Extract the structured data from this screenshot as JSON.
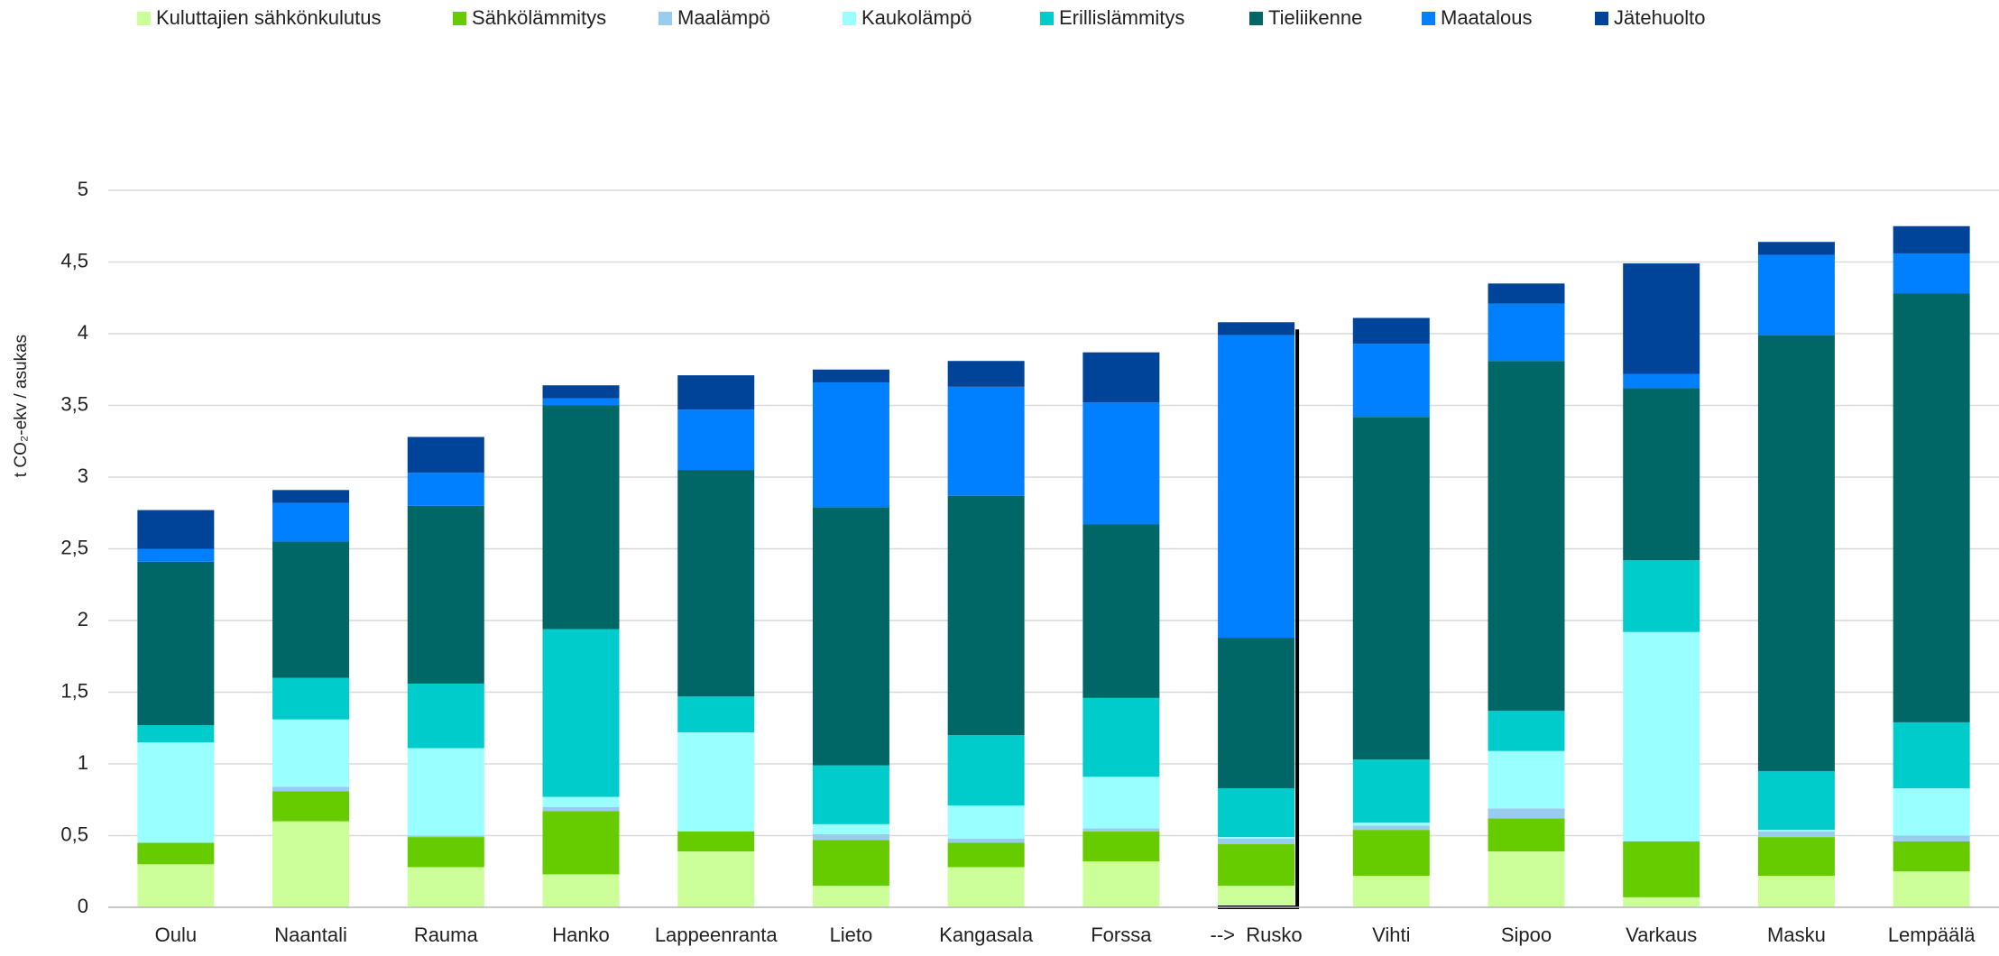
{
  "chart_data": {
    "type": "stacked_bar",
    "y_label": "t CO₂-ekv / asukas",
    "categories": [
      "Oulu",
      "Naantali",
      "Rauma",
      "Hanko",
      "Lappeenranta",
      "Lieto",
      "Kangasala",
      "Forssa",
      "-->  Rusko",
      "Vihti",
      "Sipoo",
      "Varkaus",
      "Masku",
      "Lempäälä"
    ],
    "series": [
      {
        "name": "Kuluttajien sähkönkulutus",
        "color": "#ccff99",
        "values": [
          0.3,
          0.6,
          0.28,
          0.23,
          0.39,
          0.15,
          0.28,
          0.32,
          0.15,
          0.22,
          0.39,
          0.07,
          0.22,
          0.25
        ]
      },
      {
        "name": "Sähkölämmitys",
        "color": "#66cc00",
        "values": [
          0.15,
          0.21,
          0.21,
          0.44,
          0.14,
          0.32,
          0.17,
          0.21,
          0.29,
          0.32,
          0.23,
          0.39,
          0.27,
          0.21
        ]
      },
      {
        "name": "Maalämpö",
        "color": "#99ccee",
        "values": [
          0.0,
          0.03,
          0.01,
          0.03,
          0.0,
          0.04,
          0.03,
          0.02,
          0.04,
          0.03,
          0.07,
          0.0,
          0.04,
          0.04
        ]
      },
      {
        "name": "Kaukolämpö",
        "color": "#99ffff",
        "values": [
          0.7,
          0.47,
          0.61,
          0.07,
          0.69,
          0.07,
          0.23,
          0.36,
          0.01,
          0.02,
          0.4,
          1.46,
          0.01,
          0.33
        ]
      },
      {
        "name": "Erillislämmitys",
        "color": "#00cccc",
        "values": [
          0.12,
          0.29,
          0.45,
          1.17,
          0.25,
          0.41,
          0.49,
          0.55,
          0.34,
          0.44,
          0.28,
          0.5,
          0.41,
          0.46
        ]
      },
      {
        "name": "Tieliikenne",
        "color": "#006666",
        "values": [
          1.14,
          0.95,
          1.24,
          1.56,
          1.58,
          1.8,
          1.67,
          1.21,
          1.05,
          2.39,
          2.44,
          1.2,
          3.04,
          2.99
        ]
      },
      {
        "name": "Maatalous",
        "color": "#0080ff",
        "values": [
          0.09,
          0.27,
          0.23,
          0.05,
          0.42,
          0.87,
          0.76,
          0.85,
          2.11,
          0.51,
          0.4,
          0.1,
          0.56,
          0.28
        ]
      },
      {
        "name": "Jätehuolto",
        "color": "#004499",
        "values": [
          0.27,
          0.09,
          0.25,
          0.09,
          0.24,
          0.09,
          0.18,
          0.35,
          0.09,
          0.18,
          0.14,
          0.77,
          0.09,
          0.19
        ]
      }
    ],
    "ylim": [
      0,
      5
    ],
    "yticks": [
      0,
      {
        "value": 0.5,
        "label": "0,5"
      },
      1,
      {
        "value": 1.5,
        "label": "1,5"
      },
      2,
      {
        "value": 2.5,
        "label": "2,5"
      },
      3,
      {
        "value": 3.5,
        "label": "3,5"
      },
      4,
      {
        "value": 4.5,
        "label": "4,5"
      },
      5
    ],
    "grid": true,
    "legend": "top"
  }
}
